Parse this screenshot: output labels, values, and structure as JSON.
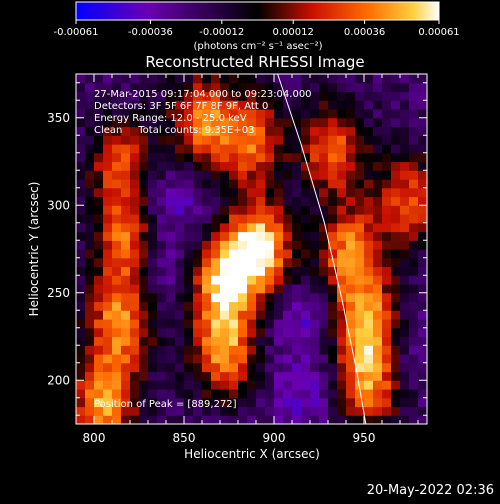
{
  "chart_data": {
    "type": "heatmap",
    "title": "Reconstructed RHESSI Image",
    "xlabel": "Heliocentric X (arcsec)",
    "ylabel": "Heliocentric Y (arcsec)",
    "xlim": [
      790,
      985
    ],
    "ylim": [
      175,
      375
    ],
    "x_ticks": [
      800,
      850,
      900,
      950
    ],
    "y_ticks": [
      200,
      250,
      300,
      350
    ],
    "x_tick_labels": [
      "800",
      "850",
      "900",
      "950"
    ],
    "y_tick_labels": [
      "200",
      "250",
      "300",
      "350"
    ],
    "colorbar": {
      "range": [
        -0.00061,
        0.00061
      ],
      "ticks": [
        -0.00061,
        -0.00036,
        -0.00012,
        0.00012,
        0.00036,
        0.00061
      ],
      "tick_labels": [
        "-0.00061",
        "-0.00036",
        "-0.00012",
        "0.00012",
        "0.00036",
        "0.00061"
      ],
      "unit_label": "(photons cm⁻² s⁻¹ asec⁻²)",
      "colors": [
        "#0000ff",
        "#6a00b0",
        "#000000",
        "#c81000",
        "#ff6a00",
        "#ffd040",
        "#ffffff"
      ]
    },
    "annotations": [
      "27-Mar-2015 09:17:04.000 to 09:23:04.000",
      "Detectors: 3F 5F 6F 7F 8F 9F, Att 0",
      "Energy Range: 12.0 - 25.0 keV",
      "Clean     Total counts: 9.35E+03"
    ],
    "peak_label": "Position of Peak = [889,272]",
    "peak": {
      "x": 889,
      "y": 272
    },
    "emission_ridges": [
      {
        "x": 803,
        "y": 185,
        "value": 0.00045
      },
      {
        "x": 812,
        "y": 230,
        "value": 0.0004
      },
      {
        "x": 815,
        "y": 275,
        "value": 0.00035
      },
      {
        "x": 813,
        "y": 320,
        "value": 0.0003
      },
      {
        "x": 870,
        "y": 215,
        "value": 0.00042
      },
      {
        "x": 868,
        "y": 255,
        "value": 0.00048
      },
      {
        "x": 889,
        "y": 272,
        "value": 0.00061
      },
      {
        "x": 858,
        "y": 345,
        "value": 0.00038
      },
      {
        "x": 885,
        "y": 335,
        "value": 0.00032
      },
      {
        "x": 930,
        "y": 330,
        "value": 0.00034
      },
      {
        "x": 940,
        "y": 270,
        "value": 0.0004
      },
      {
        "x": 948,
        "y": 230,
        "value": 0.00045
      },
      {
        "x": 950,
        "y": 195,
        "value": 0.00038
      },
      {
        "x": 972,
        "y": 300,
        "value": 0.0003
      }
    ],
    "negative_regions": [
      {
        "x": 840,
        "y": 300,
        "value": -0.00035
      },
      {
        "x": 835,
        "y": 260,
        "value": -0.0003
      },
      {
        "x": 915,
        "y": 235,
        "value": -0.00035
      },
      {
        "x": 915,
        "y": 190,
        "value": -0.0003
      },
      {
        "x": 975,
        "y": 215,
        "value": -0.00025
      }
    ],
    "limb_curve": [
      {
        "x": 902,
        "y": 375
      },
      {
        "x": 915,
        "y": 335
      },
      {
        "x": 928,
        "y": 290
      },
      {
        "x": 938,
        "y": 245
      },
      {
        "x": 946,
        "y": 205
      },
      {
        "x": 951,
        "y": 175
      }
    ]
  },
  "footer": {
    "timestamp": "20-May-2022 02:36"
  }
}
